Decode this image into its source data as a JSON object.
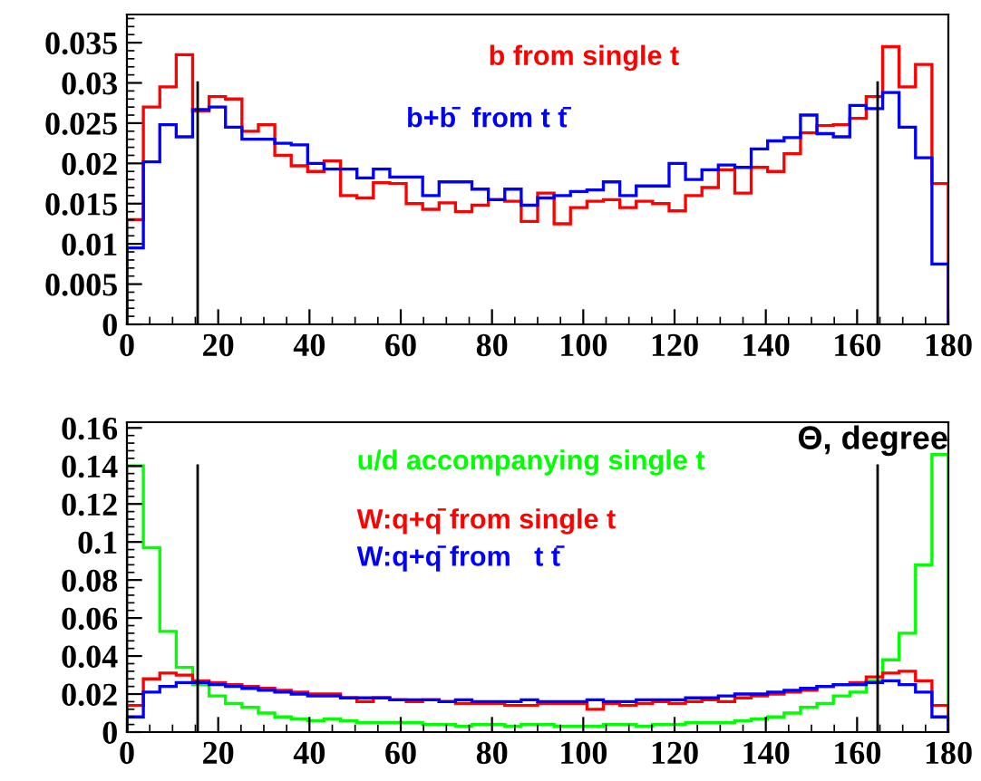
{
  "chart_data": [
    {
      "type": "histogram",
      "bins": [
        0,
        3.6,
        7.2,
        10.8,
        14.4,
        18,
        21.6,
        25.2,
        28.8,
        32.4,
        36,
        39.6,
        43.2,
        46.8,
        50.4,
        54,
        57.6,
        61.2,
        64.8,
        68.4,
        72,
        75.6,
        79.2,
        82.8,
        86.4,
        90,
        93.6,
        97.2,
        100.8,
        104.4,
        108,
        111.6,
        115.2,
        118.8,
        122.4,
        126,
        129.6,
        133.2,
        136.8,
        140.4,
        144,
        147.6,
        151.2,
        154.8,
        158.4,
        162,
        165.6,
        169.2,
        172.8,
        176.4,
        180
      ],
      "series": [
        {
          "name": "b from single t",
          "color": "#ff0000",
          "values": [
            0.013,
            0.027,
            0.0295,
            0.0335,
            0.0265,
            0.0283,
            0.028,
            0.024,
            0.0248,
            0.021,
            0.0197,
            0.019,
            0.0203,
            0.016,
            0.0157,
            0.0176,
            0.0175,
            0.015,
            0.0143,
            0.0151,
            0.014,
            0.0148,
            0.0155,
            0.0153,
            0.0128,
            0.0163,
            0.0125,
            0.0145,
            0.0153,
            0.0155,
            0.0145,
            0.0153,
            0.015,
            0.0141,
            0.016,
            0.017,
            0.0192,
            0.0163,
            0.0195,
            0.019,
            0.0212,
            0.0238,
            0.0247,
            0.0248,
            0.0256,
            0.0283,
            0.0345,
            0.0295,
            0.0323,
            0.0175
          ]
        },
        {
          "name": "b+b̄  from t t̄",
          "color": "#0000ff",
          "values": [
            0.0095,
            0.0202,
            0.0248,
            0.0233,
            0.0267,
            0.027,
            0.0245,
            0.023,
            0.023,
            0.0225,
            0.0223,
            0.02,
            0.0193,
            0.0193,
            0.0182,
            0.0193,
            0.0183,
            0.0183,
            0.016,
            0.0177,
            0.0177,
            0.0168,
            0.0155,
            0.0168,
            0.0148,
            0.0157,
            0.016,
            0.0165,
            0.0167,
            0.0177,
            0.016,
            0.0172,
            0.0172,
            0.02,
            0.018,
            0.0192,
            0.0198,
            0.0195,
            0.0218,
            0.0228,
            0.0232,
            0.026,
            0.0237,
            0.0233,
            0.0272,
            0.0268,
            0.0288,
            0.0245,
            0.0207,
            0.0075
          ]
        }
      ],
      "xlim": [
        0,
        180
      ],
      "xticks": [
        0,
        20,
        40,
        60,
        80,
        100,
        120,
        140,
        160,
        180
      ],
      "ylim": [
        0,
        0.0385
      ],
      "yticks": [
        0,
        0.005,
        0.01,
        0.015,
        0.02,
        0.025,
        0.03,
        0.035
      ],
      "ref_lines": [
        {
          "axis": "x",
          "value": 15.5,
          "color": "#000000"
        },
        {
          "axis": "x",
          "value": 164.5,
          "color": "#000000"
        }
      ],
      "grid": false,
      "legend": false
    },
    {
      "type": "histogram",
      "xlabel": "Θ, degree",
      "bins": [
        0,
        3.6,
        7.2,
        10.8,
        14.4,
        18,
        21.6,
        25.2,
        28.8,
        32.4,
        36,
        39.6,
        43.2,
        46.8,
        50.4,
        54,
        57.6,
        61.2,
        64.8,
        68.4,
        72,
        75.6,
        79.2,
        82.8,
        86.4,
        90,
        93.6,
        97.2,
        100.8,
        104.4,
        108,
        111.6,
        115.2,
        118.8,
        122.4,
        126,
        129.6,
        133.2,
        136.8,
        140.4,
        144,
        147.6,
        151.2,
        154.8,
        158.4,
        162,
        165.6,
        169.2,
        172.8,
        176.4,
        180
      ],
      "series": [
        {
          "name": "u/d accompanying single t",
          "color": "#00ff00",
          "values": [
            0.14,
            0.097,
            0.053,
            0.034,
            0.025,
            0.019,
            0.015,
            0.013,
            0.01,
            0.008,
            0.007,
            0.006,
            0.007,
            0.006,
            0.005,
            0.005,
            0.005,
            0.005,
            0.004,
            0.004,
            0.003,
            0.004,
            0.004,
            0.003,
            0.004,
            0.004,
            0.003,
            0.003,
            0.003,
            0.004,
            0.004,
            0.003,
            0.004,
            0.004,
            0.005,
            0.005,
            0.005,
            0.006,
            0.007,
            0.008,
            0.01,
            0.013,
            0.015,
            0.019,
            0.021,
            0.027,
            0.038,
            0.052,
            0.088,
            0.146
          ]
        },
        {
          "name": "W:q+q̄ from single t",
          "color": "#ff0000",
          "values": [
            0.014,
            0.028,
            0.031,
            0.03,
            0.027,
            0.026,
            0.025,
            0.024,
            0.023,
            0.022,
            0.021,
            0.02,
            0.02,
            0.018,
            0.016,
            0.018,
            0.017,
            0.016,
            0.017,
            0.016,
            0.015,
            0.015,
            0.015,
            0.014,
            0.014,
            0.015,
            0.015,
            0.015,
            0.012,
            0.015,
            0.014,
            0.015,
            0.016,
            0.015,
            0.016,
            0.017,
            0.016,
            0.018,
            0.019,
            0.02,
            0.021,
            0.022,
            0.024,
            0.025,
            0.026,
            0.029,
            0.031,
            0.032,
            0.027,
            0.014
          ]
        },
        {
          "name": "W:q+q̄ from   t t̄",
          "color": "#0000ff",
          "values": [
            0.008,
            0.021,
            0.024,
            0.026,
            0.026,
            0.025,
            0.024,
            0.023,
            0.022,
            0.021,
            0.02,
            0.019,
            0.019,
            0.018,
            0.018,
            0.018,
            0.017,
            0.017,
            0.017,
            0.016,
            0.017,
            0.016,
            0.016,
            0.016,
            0.017,
            0.016,
            0.016,
            0.016,
            0.017,
            0.016,
            0.016,
            0.017,
            0.017,
            0.017,
            0.018,
            0.018,
            0.019,
            0.02,
            0.02,
            0.021,
            0.022,
            0.023,
            0.024,
            0.025,
            0.025,
            0.026,
            0.027,
            0.025,
            0.021,
            0.008
          ]
        }
      ],
      "xlim": [
        0,
        180
      ],
      "xticks": [
        0,
        20,
        40,
        60,
        80,
        100,
        120,
        140,
        160,
        180
      ],
      "ylim": [
        0,
        0.163
      ],
      "yticks": [
        0,
        0.02,
        0.04,
        0.06,
        0.08,
        0.1,
        0.12,
        0.14,
        0.16
      ],
      "ref_lines": [
        {
          "axis": "x",
          "value": 15.5,
          "color": "#000000"
        },
        {
          "axis": "x",
          "value": 164.5,
          "color": "#000000"
        }
      ],
      "grid": false,
      "legend": false
    }
  ]
}
